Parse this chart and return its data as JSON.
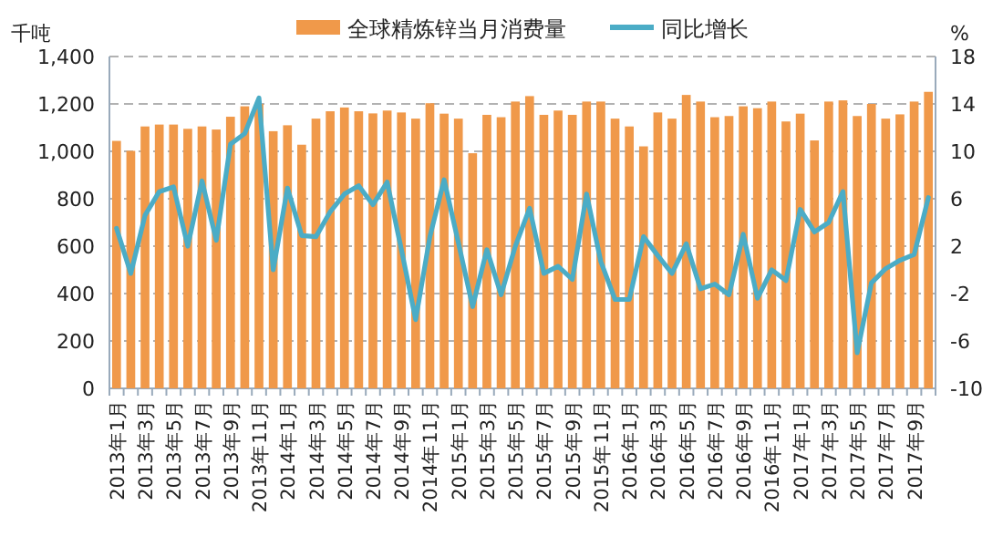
{
  "chart_data": {
    "type": "bar",
    "categories": [
      "2013年1月",
      null,
      "2013年3月",
      null,
      "2013年5月",
      null,
      "2013年7月",
      null,
      "2013年9月",
      null,
      "2013年11月",
      null,
      "2014年1月",
      null,
      "2014年3月",
      null,
      "2014年5月",
      null,
      "2014年7月",
      null,
      "2014年9月",
      null,
      "2014年11月",
      null,
      "2015年1月",
      null,
      "2015年3月",
      null,
      "2015年5月",
      null,
      "2015年7月",
      null,
      "2015年9月",
      null,
      "2015年11月",
      null,
      "2016年1月",
      null,
      "2016年3月",
      null,
      "2016年5月",
      null,
      "2016年7月",
      null,
      "2016年9月",
      null,
      "2016年11月",
      null,
      "2017年1月",
      null,
      "2017年3月",
      null,
      "2017年5月",
      null,
      "2017年7月",
      null,
      "2017年9月",
      null
    ],
    "series": [
      {
        "name": "全球精炼锌当月消费量",
        "color": "#f0994a",
        "values": [
          1044,
          1002,
          1105,
          1113,
          1113,
          1095,
          1105,
          1092,
          1146,
          1190,
          1200,
          1085,
          1110,
          1028,
          1138,
          1169,
          1185,
          1169,
          1160,
          1172,
          1164,
          1138,
          1203,
          1159,
          1138,
          992,
          1154,
          1144,
          1210,
          1233,
          1154,
          1172,
          1154,
          1210,
          1210,
          1138,
          1105,
          1021,
          1164,
          1138,
          1238,
          1210,
          1144,
          1149,
          1190,
          1182,
          1210,
          1126,
          1159,
          1046,
          1210,
          1215,
          1149,
          1200,
          1138,
          1156,
          1210,
          1251
        ]
      },
      {
        "name": "同比增长",
        "color": "#4bacc6",
        "type": "line",
        "axis": "y2",
        "values": [
          3.5,
          -0.3,
          4.6,
          6.6,
          7.0,
          2.0,
          7.5,
          2.5,
          10.6,
          11.5,
          14.5,
          0,
          6.9,
          2.9,
          2.8,
          4.9,
          6.4,
          7.1,
          5.5,
          7.4,
          1.7,
          -4.2,
          2.8,
          7.6,
          2.3,
          -3.1,
          1.7,
          -2.1,
          2.0,
          5.2,
          -0.3,
          0.3,
          -0.8,
          6.4,
          0.7,
          -2.5,
          -2.5,
          2.8,
          1.2,
          -0.3,
          2.2,
          -1.6,
          -1.2,
          -2.1,
          3.0,
          -2.4,
          0,
          -0.9,
          5.1,
          3.2,
          4.0,
          6.6,
          -7.0,
          -1.1,
          0.1,
          0.8,
          1.3,
          6.1
        ]
      }
    ],
    "ylabel": "千吨",
    "y2label": "%",
    "ylim": [
      0,
      1400
    ],
    "yticks": [
      0,
      200,
      400,
      600,
      800,
      {
        "value": 1000,
        "label": "1,000"
      },
      {
        "value": 1200,
        "label": "1,200"
      },
      {
        "value": 1400,
        "label": "1,400"
      }
    ],
    "y2lim": [
      -10,
      18
    ],
    "y2ticks": [
      -10,
      -6,
      -2,
      2,
      6,
      10,
      14,
      18
    ],
    "grid": "y",
    "legend": "top"
  }
}
